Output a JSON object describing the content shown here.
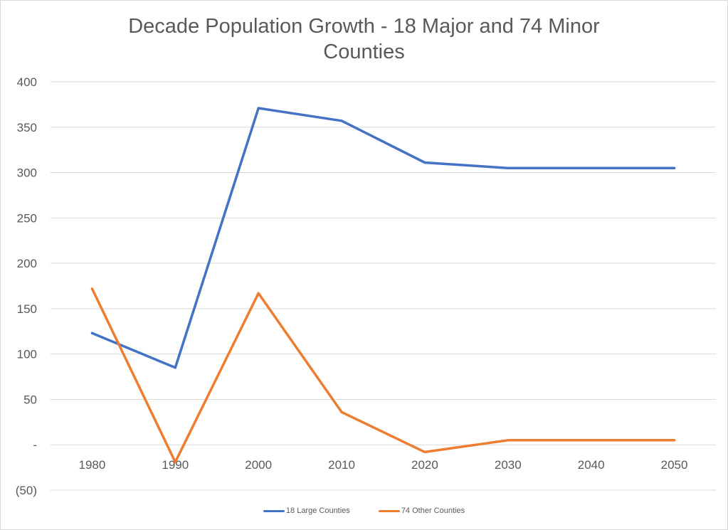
{
  "chart_data": {
    "type": "line",
    "title_line1": "Decade Population Growth - 18 Major and 74 Minor",
    "title_line2": "Counties",
    "xlabel": "",
    "ylabel": "",
    "categories": [
      "1980",
      "1990",
      "2000",
      "2010",
      "2020",
      "2030",
      "2040",
      "2050"
    ],
    "ylim": [
      -50,
      400
    ],
    "yticks": [
      400,
      350,
      300,
      250,
      200,
      150,
      100,
      50,
      0,
      -50
    ],
    "ytick_labels": [
      "400",
      "350",
      "300",
      "250",
      "200",
      "150",
      "100",
      "50",
      "-",
      "(50)"
    ],
    "grid": true,
    "legend_position": "bottom",
    "series": [
      {
        "name": "18 Large Counties",
        "color": "#4472c4",
        "values": [
          123,
          85,
          371,
          357,
          311,
          305,
          305,
          305
        ]
      },
      {
        "name": "74 Other Counties",
        "color": "#ed7d31",
        "values": [
          172,
          -19,
          167,
          36,
          -8,
          5,
          5,
          5
        ]
      }
    ]
  }
}
